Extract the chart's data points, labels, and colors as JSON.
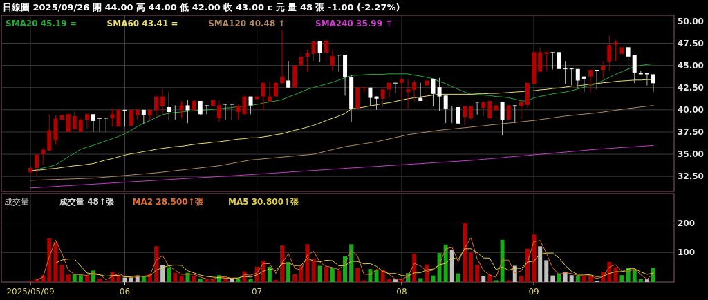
{
  "chart_data": [
    {
      "type": "candlestick",
      "title": "日線圖 2025/09/26 開 44.00 高 44.00 低 42.00 收 43.00 c 元 量 48 張 -1.00 (-2.27%)",
      "categories": [
        "2025/05/09",
        null,
        null,
        null,
        null,
        null,
        null,
        null,
        null,
        null,
        null,
        null,
        null,
        null,
        null,
        "06",
        null,
        null,
        null,
        null,
        null,
        null,
        null,
        null,
        null,
        null,
        null,
        null,
        null,
        null,
        null,
        null,
        null,
        null,
        null,
        null,
        "07",
        null,
        null,
        null,
        null,
        null,
        null,
        null,
        null,
        null,
        null,
        null,
        null,
        null,
        null,
        null,
        null,
        null,
        null,
        null,
        null,
        null,
        null,
        "08",
        null,
        null,
        null,
        null,
        null,
        null,
        null,
        null,
        null,
        null,
        null,
        null,
        null,
        null,
        null,
        null,
        null,
        null,
        null,
        null,
        "09",
        null,
        null,
        null,
        null,
        null,
        null,
        null,
        null,
        null,
        null,
        null,
        null,
        null,
        null,
        null,
        null,
        null,
        null,
        null
      ],
      "ohlc": [
        [
          32.95,
          33.5,
          32.9,
          33.45
        ],
        [
          33.45,
          35.0,
          32.5,
          34.95
        ],
        [
          35.0,
          35.7,
          33.8,
          35.5
        ],
        [
          35.4,
          39.5,
          35.4,
          37.7
        ],
        [
          36.6,
          39.4,
          36.1,
          39.0
        ],
        [
          38.9,
          40.0,
          38.9,
          39.4
        ],
        [
          37.5,
          39.6,
          37.5,
          39.5
        ],
        [
          37.8,
          39.8,
          37.8,
          39.3
        ],
        [
          37.5,
          39.0,
          37.5,
          38.9
        ],
        [
          38.9,
          39.6,
          37.85,
          39.5
        ],
        [
          39.5,
          39.5,
          37.5,
          38.75
        ],
        [
          39.1,
          39.1,
          37.5,
          39.0
        ],
        [
          39.1,
          39.1,
          37.5,
          39.1
        ],
        [
          39.05,
          40.1,
          38.1,
          39.5
        ],
        [
          38.1,
          40.0,
          38.1,
          40.0
        ],
        [
          40.0,
          40.0,
          38.1,
          40.0
        ],
        [
          38.2,
          40.0,
          38.2,
          40.0
        ],
        [
          39.4,
          40.1,
          38.8,
          40.0
        ],
        [
          40.0,
          40.0,
          38.4,
          39.4
        ],
        [
          39.4,
          40.0,
          38.8,
          40.0
        ],
        [
          39.95,
          41.5,
          39.2,
          41.5
        ],
        [
          40.4,
          42.3,
          39.5,
          41.5
        ],
        [
          40.3,
          42.0,
          38.9,
          39.75
        ],
        [
          40.45,
          40.5,
          38.9,
          40.4
        ],
        [
          40.0,
          41.0,
          39.1,
          40.5
        ],
        [
          40.5,
          41.1,
          38.5,
          39.95
        ],
        [
          40.0,
          41.1,
          39.9,
          41.0
        ],
        [
          41.0,
          41.0,
          39.4,
          39.5
        ],
        [
          40.5,
          40.5,
          39.5,
          40.5
        ],
        [
          40.45,
          41.1,
          40.4,
          41.1
        ],
        [
          39.05,
          41.0,
          38.65,
          40.5
        ],
        [
          40.65,
          40.7,
          38.9,
          40.6
        ],
        [
          40.65,
          40.7,
          38.9,
          40.6
        ],
        [
          39.75,
          40.6,
          38.9,
          40.4
        ],
        [
          39.5,
          41.5,
          39.5,
          41.5
        ],
        [
          41.5,
          41.5,
          39.5,
          40.5
        ],
        [
          41.2,
          41.5,
          40.1,
          41.5
        ],
        [
          41.5,
          43.1,
          40.0,
          43.05
        ],
        [
          40.95,
          43.1,
          40.9,
          41.5
        ],
        [
          41.5,
          43.1,
          41.5,
          43.05
        ],
        [
          43.0,
          49.0,
          42.9,
          43.75
        ],
        [
          43.3,
          45.5,
          42.5,
          42.5
        ],
        [
          42.5,
          45.0,
          42.5,
          44.97
        ],
        [
          45.0,
          46.45,
          44.4,
          45.97
        ],
        [
          45.97,
          46.8,
          44.3,
          46.4
        ],
        [
          46.3,
          47.7,
          45.5,
          47.7
        ],
        [
          47.7,
          47.7,
          45.4,
          46.45
        ],
        [
          46.45,
          47.8,
          45.5,
          47.8
        ],
        [
          44.97,
          46.8,
          44.4,
          46.05
        ],
        [
          46.2,
          46.2,
          44.3,
          46.15
        ],
        [
          46.2,
          46.2,
          41.6,
          43.7
        ],
        [
          43.7,
          43.95,
          38.65,
          40.15
        ],
        [
          40.15,
          42.5,
          40.0,
          42.5
        ],
        [
          42.45,
          42.5,
          42.0,
          42.5
        ],
        [
          42.5,
          42.5,
          40.4,
          41.35
        ],
        [
          41.5,
          41.5,
          40.0,
          41.25
        ],
        [
          41.25,
          42.3,
          40.3,
          42.3
        ],
        [
          42.3,
          43.05,
          41.35,
          43.05
        ],
        [
          43.05,
          43.05,
          41.9,
          43.0
        ],
        [
          43.05,
          43.45,
          41.1,
          43.45
        ],
        [
          42.0,
          43.45,
          40.1,
          42.3
        ],
        [
          42.25,
          43.35,
          40.95,
          43.1
        ],
        [
          41.35,
          43.05,
          41.0,
          41.0
        ],
        [
          42.75,
          43.3,
          40.4,
          43.3
        ],
        [
          43.5,
          43.5,
          40.4,
          41.8
        ],
        [
          42.55,
          43.6,
          39.9,
          41.5
        ],
        [
          41.6,
          41.6,
          38.5,
          40.15
        ],
        [
          40.15,
          40.4,
          38.5,
          40.1
        ],
        [
          40.3,
          40.3,
          38.45,
          38.45
        ],
        [
          39.2,
          40.4,
          38.25,
          40.4
        ],
        [
          39.05,
          40.4,
          38.9,
          40.4
        ],
        [
          40.9,
          40.9,
          39.45,
          40.85
        ],
        [
          40.2,
          41.0,
          39.3,
          40.85
        ],
        [
          39.05,
          41.0,
          39.0,
          41.0
        ],
        [
          39.95,
          40.9,
          39.2,
          40.5
        ],
        [
          40.85,
          40.85,
          37.1,
          38.9
        ],
        [
          38.9,
          40.5,
          38.9,
          40.5
        ],
        [
          40.5,
          40.5,
          38.5,
          40.45
        ],
        [
          40.4,
          40.9,
          39.0,
          40.9
        ],
        [
          40.55,
          43.05,
          40.25,
          43.05
        ],
        [
          42.95,
          46.5,
          42.9,
          46.5
        ],
        [
          44.3,
          47.0,
          44.3,
          46.5
        ],
        [
          46.3,
          46.5,
          44.4,
          46.5
        ],
        [
          46.5,
          46.5,
          44.55,
          46.45
        ],
        [
          46.5,
          46.5,
          43.2,
          44.6
        ],
        [
          44.65,
          45.5,
          42.95,
          44.6
        ],
        [
          44.65,
          44.65,
          42.75,
          44.6
        ],
        [
          44.6,
          44.6,
          42.5,
          43.3
        ],
        [
          43.75,
          43.75,
          42.0,
          43.5
        ],
        [
          43.75,
          44.5,
          42.0,
          44.5
        ],
        [
          44.5,
          44.5,
          42.3,
          44.45
        ],
        [
          44.5,
          45.5,
          43.5,
          44.95
        ],
        [
          45.45,
          48.4,
          44.4,
          47.3
        ],
        [
          47.35,
          47.85,
          45.5,
          47.6
        ],
        [
          46.3,
          47.5,
          45.5,
          47.05
        ],
        [
          47.05,
          47.05,
          44.5,
          46.0
        ],
        [
          46.2,
          46.2,
          43.0,
          44.2
        ],
        [
          44.15,
          44.4,
          44.0,
          44.0
        ],
        [
          44.15,
          44.15,
          42.75,
          44.0
        ],
        [
          44.0,
          44.0,
          42.0,
          43.0
        ]
      ],
      "colors": [
        "#b00000",
        "#b00000",
        "#b00000",
        "#b00000",
        "#b00000",
        "#b00000",
        "#b00000",
        "#b00000",
        "#b00000",
        "#b00000",
        "#ffffff",
        "#ffffff",
        "#ffffff",
        "#b00000",
        "#b00000",
        "#ffffff",
        "#b00000",
        "#b00000",
        "#ffffff",
        "#b00000",
        "#b00000",
        "#b00000",
        "#ffffff",
        "#ffffff",
        "#b00000",
        "#ffffff",
        "#b00000",
        "#ffffff",
        "#ffffff",
        "#b00000",
        "#b00000",
        "#ffffff",
        "#ffffff",
        "#b00000",
        "#b00000",
        "#ffffff",
        "#b00000",
        "#b00000",
        "#b00000",
        "#b00000",
        "#b00000",
        "#ffffff",
        "#b00000",
        "#b00000",
        "#b00000",
        "#b00000",
        "#ffffff",
        "#b00000",
        "#b00000",
        "#ffffff",
        "#ffffff",
        "#ffffff",
        "#b00000",
        "#b00000",
        "#ffffff",
        "#ffffff",
        "#b00000",
        "#b00000",
        "#ffffff",
        "#b00000",
        "#b00000",
        "#b00000",
        "#ffffff",
        "#b00000",
        "#ffffff",
        "#ffffff",
        "#ffffff",
        "#ffffff",
        "#ffffff",
        "#b00000",
        "#b00000",
        "#ffffff",
        "#b00000",
        "#b00000",
        "#b00000",
        "#ffffff",
        "#b00000",
        "#ffffff",
        "#b00000",
        "#b00000",
        "#b00000",
        "#b00000",
        "#b00000",
        "#ffffff",
        "#ffffff",
        "#ffffff",
        "#ffffff",
        "#ffffff",
        "#ffffff",
        "#b00000",
        "#ffffff",
        "#b00000",
        "#b00000",
        "#b00000",
        "#b00000",
        "#ffffff",
        "#ffffff",
        "#ffffff",
        "#ffffff",
        "#ffffff"
      ],
      "series": [
        {
          "type": "line",
          "name": "SMA20 45.19 =",
          "color": "#2aa83e",
          "values": [
            33.1,
            33.25,
            33.45,
            33.6,
            33.8,
            34.25,
            34.7,
            35.1,
            35.55,
            35.8,
            36.0,
            36.25,
            36.5,
            36.75,
            37.0,
            37.3,
            37.7,
            38.1,
            38.5,
            38.8,
            39.15,
            39.45,
            39.6,
            39.7,
            39.75,
            39.85,
            39.9,
            39.95,
            40.0,
            40.05,
            40.1,
            40.2,
            40.25,
            40.35,
            40.4,
            40.5,
            40.6,
            40.75,
            40.9,
            41.0,
            41.15,
            41.45,
            41.7,
            42.0,
            42.3,
            42.5,
            42.7,
            42.9,
            43.1,
            43.35,
            43.6,
            43.85,
            43.9,
            43.95,
            44.0,
            44.0,
            44.0,
            44.05,
            44.05,
            44.05,
            44.05,
            43.9,
            43.8,
            43.65,
            43.5,
            43.2,
            42.95,
            42.6,
            42.3,
            42.0,
            41.75,
            41.7,
            41.65,
            41.6,
            41.5,
            41.45,
            41.35,
            41.2,
            41.0,
            41.0,
            41.35,
            41.5,
            41.65,
            41.8,
            41.9,
            42.0,
            42.15,
            42.35,
            42.55,
            42.75,
            42.95,
            43.3,
            43.65,
            44.0,
            44.3,
            44.6,
            44.85,
            45.0,
            45.1,
            45.19
          ]
        },
        {
          "type": "line",
          "name": "SMA60 43.41 =",
          "color": "#e8e070",
          "values": [
            33.1,
            33.2,
            33.25,
            33.35,
            33.4,
            33.5,
            33.6,
            33.7,
            33.75,
            33.85,
            33.95,
            34.15,
            34.35,
            34.5,
            34.7,
            34.9,
            35.05,
            35.15,
            35.3,
            35.4,
            35.55,
            35.65,
            35.75,
            35.85,
            35.9,
            36.0,
            36.1,
            36.2,
            36.25,
            36.35,
            36.4,
            36.5,
            36.6,
            36.7,
            36.75,
            36.85,
            36.85,
            36.95,
            37.05,
            37.2,
            37.3,
            37.5,
            37.7,
            37.85,
            38.05,
            38.25,
            38.5,
            38.8,
            39.05,
            39.3,
            39.6,
            40.1,
            40.2,
            40.3,
            40.45,
            40.55,
            40.7,
            40.8,
            40.95,
            41.1,
            41.25,
            41.35,
            41.45,
            41.55,
            41.65,
            41.75,
            41.75,
            41.75,
            41.75,
            41.75,
            41.75,
            41.8,
            41.8,
            41.85,
            41.85,
            41.9,
            41.95,
            42.0,
            42.05,
            42.1,
            42.15,
            42.25,
            42.3,
            42.4,
            42.45,
            42.55,
            42.65,
            42.7,
            42.8,
            42.9,
            42.95,
            43.05,
            43.1,
            43.2,
            43.25,
            43.3,
            43.35,
            43.35,
            43.4,
            43.41
          ]
        },
        {
          "type": "line",
          "name": "SMA120 40.48 ↑",
          "color": "#b08a62",
          "values": [
            32.05,
            32.08,
            32.1,
            32.13,
            32.15,
            32.18,
            32.2,
            32.23,
            32.25,
            32.28,
            32.3,
            32.36,
            32.42,
            32.48,
            32.54,
            32.6,
            32.66,
            32.72,
            32.78,
            32.84,
            32.9,
            32.98,
            33.06,
            33.14,
            33.22,
            33.3,
            33.38,
            33.46,
            33.54,
            33.62,
            33.7,
            33.83,
            33.96,
            34.09,
            34.22,
            34.35,
            34.41,
            34.48,
            34.54,
            34.61,
            34.67,
            34.74,
            34.8,
            34.87,
            34.93,
            35.0,
            35.17,
            35.34,
            35.51,
            35.68,
            35.85,
            35.96,
            36.07,
            36.18,
            36.29,
            36.4,
            36.56,
            36.72,
            36.88,
            37.04,
            37.2,
            37.3,
            37.4,
            37.5,
            37.6,
            37.7,
            37.77,
            37.84,
            37.91,
            37.98,
            38.05,
            38.13,
            38.2,
            38.28,
            38.35,
            38.43,
            38.5,
            38.58,
            38.65,
            38.73,
            38.8,
            38.9,
            39.0,
            39.1,
            39.2,
            39.3,
            39.37,
            39.44,
            39.51,
            39.58,
            39.65,
            39.75,
            39.85,
            39.95,
            40.05,
            40.15,
            40.23,
            40.32,
            40.4,
            40.48
          ]
        },
        {
          "type": "line",
          "name": "SMA240 35.99 ↑",
          "color": "#c83cc8",
          "values": [
            31.2,
            31.24,
            31.29,
            31.33,
            31.37,
            31.41,
            31.46,
            31.5,
            31.54,
            31.59,
            31.63,
            31.67,
            31.71,
            31.76,
            31.8,
            31.84,
            31.89,
            31.93,
            31.97,
            32.01,
            32.06,
            32.1,
            32.14,
            32.19,
            32.23,
            32.27,
            32.31,
            32.36,
            32.4,
            32.44,
            32.49,
            32.53,
            32.57,
            32.61,
            32.66,
            32.7,
            32.75,
            32.79,
            32.84,
            32.89,
            32.93,
            32.98,
            33.03,
            33.07,
            33.12,
            33.17,
            33.21,
            33.26,
            33.31,
            33.35,
            33.4,
            33.45,
            33.49,
            33.54,
            33.58,
            33.63,
            33.67,
            33.72,
            33.76,
            33.81,
            33.85,
            33.9,
            33.94,
            33.99,
            34.03,
            34.08,
            34.12,
            34.17,
            34.21,
            34.26,
            34.3,
            34.36,
            34.43,
            34.49,
            34.55,
            34.61,
            34.68,
            34.74,
            34.8,
            34.86,
            34.93,
            34.99,
            35.05,
            35.11,
            35.18,
            35.24,
            35.3,
            35.36,
            35.43,
            35.49,
            35.55,
            35.6,
            35.65,
            35.7,
            35.75,
            35.79,
            35.84,
            35.89,
            35.94,
            35.99
          ]
        }
      ],
      "ylim": [
        30.8,
        50.5
      ],
      "yticks": [
        {
          "value": 32.5,
          "label": "32.50"
        },
        {
          "value": 35,
          "label": "35.00"
        },
        {
          "value": 37.5,
          "label": "37.50"
        },
        {
          "value": 40,
          "label": "40.00"
        },
        {
          "value": 42.5,
          "label": "42.50"
        },
        {
          "value": 45,
          "label": "45.00"
        },
        {
          "value": 47.5,
          "label": "47.50"
        },
        {
          "value": 50,
          "label": "50.00"
        }
      ],
      "grid": true,
      "legend": "top left",
      "tick_labels": "y"
    },
    {
      "type": "bar",
      "ylabel": "成交量",
      "categories": [
        "2025/05/09",
        null,
        null,
        null,
        null,
        null,
        null,
        null,
        null,
        null,
        null,
        null,
        null,
        null,
        null,
        "06",
        null,
        null,
        null,
        null,
        null,
        null,
        null,
        null,
        null,
        null,
        null,
        null,
        null,
        null,
        null,
        null,
        null,
        null,
        null,
        null,
        "07",
        null,
        null,
        null,
        null,
        null,
        null,
        null,
        null,
        null,
        null,
        null,
        null,
        null,
        null,
        null,
        null,
        null,
        null,
        null,
        null,
        null,
        null,
        "08",
        null,
        null,
        null,
        null,
        null,
        null,
        null,
        null,
        null,
        null,
        null,
        null,
        null,
        null,
        null,
        null,
        null,
        null,
        null,
        null,
        "09",
        null,
        null,
        null,
        null,
        null,
        null,
        null,
        null,
        null,
        null,
        null,
        null,
        null,
        null,
        null,
        null,
        null,
        null,
        null
      ],
      "series": [
        {
          "type": "bar",
          "name": "成交量 48↑張",
          "color": "#d8d8d8",
          "values": [
            4,
            10,
            23,
            148,
            136,
            58,
            25,
            26,
            23,
            21,
            39,
            12,
            3,
            34,
            23,
            15,
            15,
            21,
            18,
            28,
            121,
            58,
            50,
            31,
            21,
            31,
            21,
            12,
            9,
            10,
            23,
            13,
            10,
            13,
            36,
            10,
            52,
            72,
            52,
            7,
            124,
            68,
            26,
            55,
            128,
            80,
            55,
            52,
            47,
            39,
            87,
            128,
            47,
            6,
            44,
            40,
            42,
            10,
            9,
            9,
            30,
            96,
            13,
            59,
            22,
            98,
            127,
            108,
            29,
            201,
            100,
            58,
            21,
            25,
            6,
            143,
            6,
            55,
            21,
            113,
            161,
            121,
            74,
            22,
            29,
            34,
            23,
            21,
            21,
            21,
            3,
            33,
            68,
            50,
            23,
            47,
            40,
            10,
            9,
            48
          ],
          "colors": [
            "#b00000",
            "#b00000",
            "#b00000",
            "#b00000",
            "#b00000",
            "#b00000",
            "#b00000",
            "#1aaa1a",
            "#1aaa1a",
            "#b00000",
            "#1aaa1a",
            "#b00000",
            "#b00000",
            "#b00000",
            "#b00000",
            "#c0c0c0",
            "#c0c0c0",
            "#c0c0c0",
            "#1aaa1a",
            "#b00000",
            "#b00000",
            "#c0c0c0",
            "#1aaa1a",
            "#b00000",
            "#b00000",
            "#1aaa1a",
            "#b00000",
            "#1aaa1a",
            "#b00000",
            "#b00000",
            "#1aaa1a",
            "#b00000",
            "#c0c0c0",
            "#1aaa1a",
            "#b00000",
            "#1aaa1a",
            "#b00000",
            "#b00000",
            "#1aaa1a",
            "#b00000",
            "#b00000",
            "#1aaa1a",
            "#b00000",
            "#b00000",
            "#b00000",
            "#b00000",
            "#1aaa1a",
            "#b00000",
            "#1aaa1a",
            "#b00000",
            "#1aaa1a",
            "#1aaa1a",
            "#b00000",
            "#b00000",
            "#1aaa1a",
            "#1aaa1a",
            "#b00000",
            "#b00000",
            "#c0c0c0",
            "#b00000",
            "#1aaa1a",
            "#b00000",
            "#1aaa1a",
            "#b00000",
            "#1aaa1a",
            "#1aaa1a",
            "#1aaa1a",
            "#c0c0c0",
            "#1aaa1a",
            "#b00000",
            "#b00000",
            "#b00000",
            "#c0c0c0",
            "#b00000",
            "#1aaa1a",
            "#1aaa1a",
            "#b00000",
            "#c0c0c0",
            "#b00000",
            "#b00000",
            "#b00000",
            "#c0c0c0",
            "#c0c0c0",
            "#c0c0c0",
            "#1aaa1a",
            "#c0c0c0",
            "#c0c0c0",
            "#1aaa1a",
            "#b00000",
            "#b00000",
            "#c0c0c0",
            "#b00000",
            "#b00000",
            "#b00000",
            "#1aaa1a",
            "#1aaa1a",
            "#1aaa1a",
            "#1aaa1a",
            "#c0c0c0",
            "#1aaa1a"
          ]
        },
        {
          "type": "line",
          "name": "MA2 28.500↑張",
          "color": "#e07030",
          "values": [
            null,
            7,
            16.5,
            85.5,
            142,
            97,
            41.5,
            25.5,
            24.5,
            22,
            30,
            25.5,
            7.5,
            18.5,
            28.5,
            19,
            15,
            18,
            19.5,
            23,
            74.5,
            89.5,
            54,
            40.5,
            26,
            26,
            26,
            16.5,
            10.5,
            9.5,
            16.5,
            18,
            11.5,
            11.5,
            24.5,
            23,
            31,
            62,
            62,
            29.5,
            65.5,
            96,
            47,
            40.5,
            91.5,
            104,
            67.5,
            53.5,
            49.5,
            43,
            63,
            107.5,
            87.5,
            26.5,
            25,
            42,
            41,
            26,
            9.5,
            9,
            19.5,
            63,
            54.5,
            36,
            40.5,
            60,
            112.5,
            117.5,
            68.5,
            115,
            150.5,
            79,
            39.5,
            23,
            15.5,
            74.5,
            74.5,
            30.5,
            38,
            67,
            137,
            141,
            97.5,
            48,
            25.5,
            31.5,
            28.5,
            22,
            21,
            21,
            12,
            18,
            50.5,
            59,
            36.5,
            35,
            43.5,
            25,
            9.5,
            28.5
          ]
        },
        {
          "type": "line",
          "name": "MA5 30.800↑張",
          "color": "#e0d040",
          "values": [
            null,
            null,
            null,
            null,
            64.2,
            75,
            78,
            78.6,
            53.6,
            30.6,
            26.8,
            24.2,
            19.6,
            21.8,
            22.2,
            17.4,
            18,
            21.6,
            18.4,
            19.4,
            40.6,
            49.2,
            55,
            57.6,
            56.2,
            38.2,
            30.8,
            23.2,
            18.8,
            16.6,
            15,
            13.4,
            13,
            13.8,
            19,
            16.4,
            24.2,
            36.6,
            44.4,
            38.6,
            61.4,
            64.6,
            55.4,
            56,
            80.2,
            71.4,
            68.8,
            74,
            72.4,
            54.6,
            56,
            70.6,
            69.6,
            61.4,
            62.4,
            53,
            35.8,
            28.4,
            29,
            22,
            20,
            30.8,
            31.4,
            41.4,
            44,
            57.6,
            63.8,
            82.8,
            76.8,
            112.6,
            113,
            99.2,
            81.8,
            81,
            42,
            50.6,
            40.2,
            47,
            46.2,
            67.6,
            71.2,
            94.2,
            98,
            98.2,
            81.4,
            56,
            36.4,
            25.8,
            25.6,
            24,
            17.8,
            19.8,
            29.2,
            35,
            35.4,
            44.2,
            45.6,
            34,
            25.8,
            30.8
          ]
        }
      ],
      "ylim": [
        0,
        295
      ],
      "yticks": [
        100,
        200
      ],
      "grid": true,
      "legend": "top left"
    }
  ]
}
